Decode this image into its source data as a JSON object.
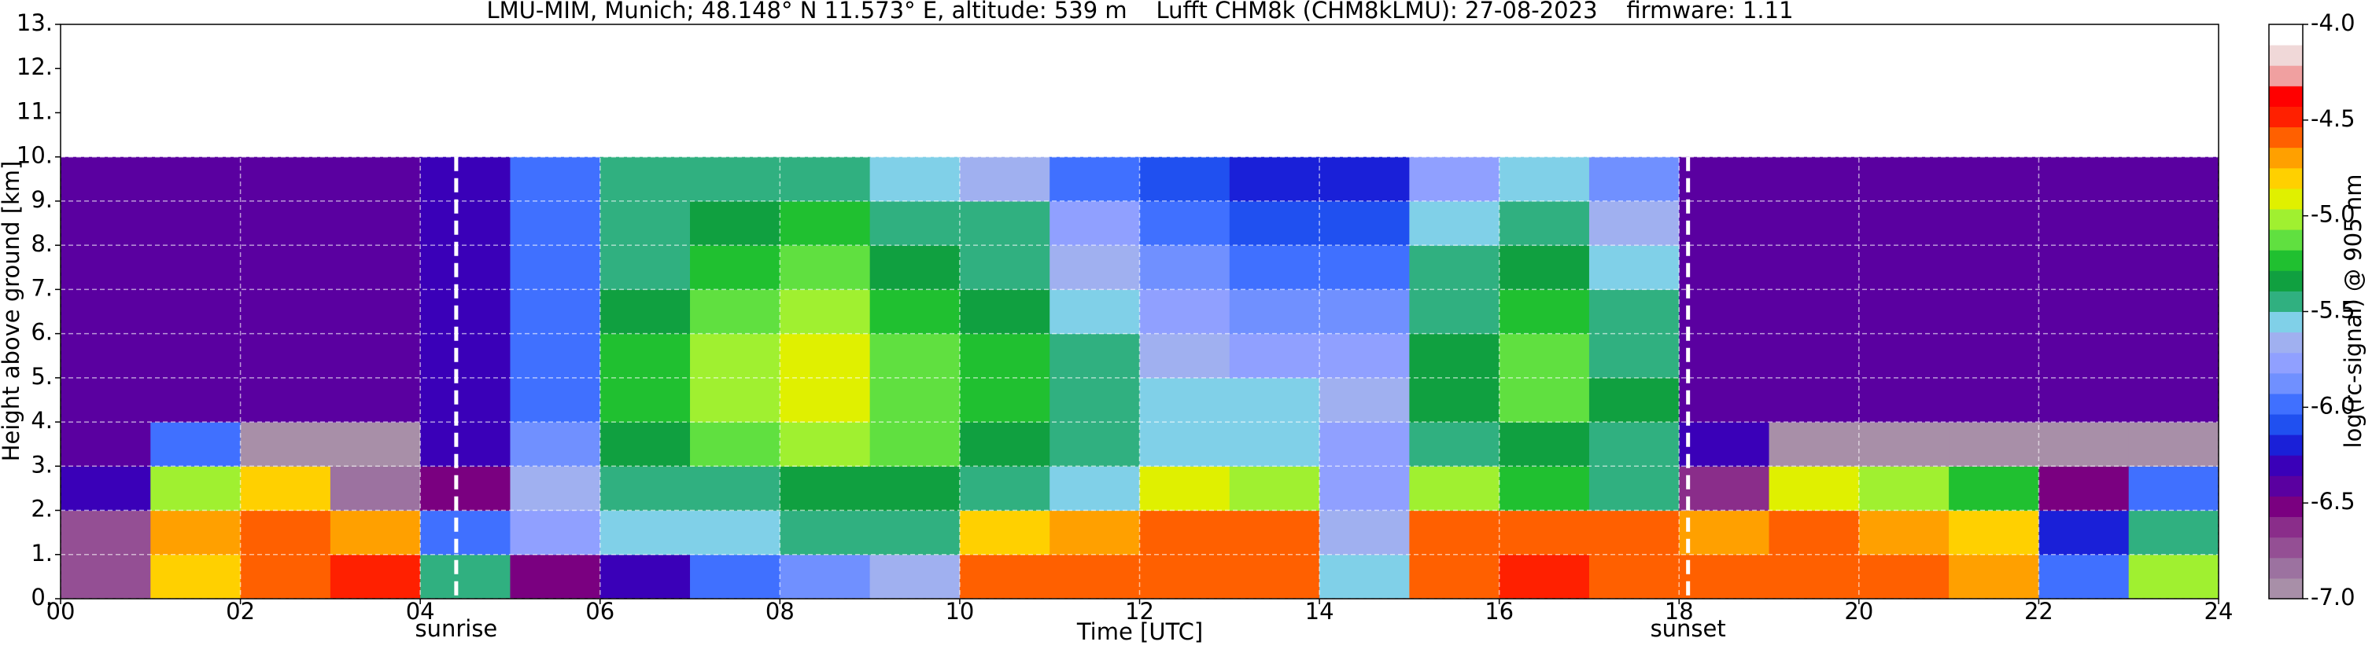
{
  "chart_data": {
    "type": "heatmap",
    "title": "LMU-MIM, Munich; 48.148° N 11.573° E, altitude: 539 m    Lufft CHM8k (CHM8kLMU): 27-08-2023    firmware: 1.11",
    "xlabel": "Time [UTC]",
    "ylabel": "Height above ground [km]",
    "colorbar_label": "log(rc-signal) @ 905 nm",
    "x_edges": [
      0,
      1,
      2,
      3,
      4,
      5,
      6,
      7,
      8,
      9,
      10,
      11,
      12,
      13,
      14,
      15,
      16,
      17,
      18,
      19,
      20,
      21,
      22,
      23,
      24
    ],
    "y_edges": [
      0,
      1,
      2,
      3,
      4,
      5,
      6,
      7,
      8,
      9,
      10
    ],
    "z": [
      [
        -6.7,
        -6.7,
        -6.3,
        -6.4,
        -6.4,
        -6.4,
        -6.4,
        -6.4,
        -6.4,
        -6.4
      ],
      [
        -4.8,
        -4.7,
        -5.0,
        -6.0,
        -6.4,
        -6.4,
        -6.4,
        -6.4,
        -6.4,
        -6.4
      ],
      [
        -4.6,
        -4.6,
        -4.8,
        -6.9,
        -6.4,
        -6.4,
        -6.4,
        -6.4,
        -6.4,
        -6.4
      ],
      [
        -4.5,
        -4.7,
        -6.8,
        -6.9,
        -6.4,
        -6.4,
        -6.4,
        -6.4,
        -6.4,
        -6.4
      ],
      [
        -5.5,
        -6.0,
        -6.5,
        -6.3,
        -6.3,
        -6.3,
        -6.3,
        -6.3,
        -6.3,
        -6.3
      ],
      [
        -6.5,
        -5.8,
        -5.7,
        -5.9,
        -6.0,
        -6.0,
        -6.0,
        -6.0,
        -6.0,
        -6.0
      ],
      [
        -6.3,
        -5.6,
        -5.5,
        -5.3,
        -5.2,
        -5.2,
        -5.3,
        -5.4,
        -5.4,
        -5.4
      ],
      [
        -6.0,
        -5.6,
        -5.4,
        -5.1,
        -5.0,
        -5.0,
        -5.1,
        -5.2,
        -5.3,
        -5.5
      ],
      [
        -5.9,
        -5.5,
        -5.3,
        -5.0,
        -4.9,
        -4.9,
        -5.0,
        -5.1,
        -5.2,
        -5.4
      ],
      [
        -5.7,
        -5.5,
        -5.3,
        -5.1,
        -5.1,
        -5.1,
        -5.2,
        -5.3,
        -5.4,
        -5.6
      ],
      [
        -4.6,
        -4.8,
        -5.4,
        -5.3,
        -5.2,
        -5.2,
        -5.3,
        -5.4,
        -5.5,
        -5.7
      ],
      [
        -4.6,
        -4.7,
        -5.6,
        -5.5,
        -5.4,
        -5.5,
        -5.6,
        -5.7,
        -5.8,
        -6.0
      ],
      [
        -4.6,
        -4.6,
        -4.9,
        -5.6,
        -5.6,
        -5.7,
        -5.8,
        -5.9,
        -6.0,
        -6.1
      ],
      [
        -4.6,
        -4.6,
        -5.0,
        -5.6,
        -5.6,
        -5.8,
        -5.9,
        -6.0,
        -6.1,
        -6.2
      ],
      [
        -5.6,
        -5.7,
        -5.8,
        -5.8,
        -5.7,
        -5.8,
        -5.9,
        -6.0,
        -6.1,
        -6.2
      ],
      [
        -4.6,
        -4.6,
        -5.0,
        -5.5,
        -5.3,
        -5.3,
        -5.4,
        -5.5,
        -5.6,
        -5.8
      ],
      [
        -4.5,
        -4.6,
        -5.2,
        -5.3,
        -5.1,
        -5.1,
        -5.2,
        -5.3,
        -5.4,
        -5.6
      ],
      [
        -4.6,
        -4.6,
        -5.4,
        -5.4,
        -5.3,
        -5.4,
        -5.5,
        -5.6,
        -5.7,
        -5.9
      ],
      [
        -4.6,
        -4.7,
        -6.6,
        -6.3,
        -6.4,
        -6.4,
        -6.4,
        -6.4,
        -6.4,
        -6.4
      ],
      [
        -4.6,
        -4.6,
        -4.9,
        -6.9,
        -6.4,
        -6.4,
        -6.4,
        -6.4,
        -6.4,
        -6.4
      ],
      [
        -4.6,
        -4.7,
        -5.0,
        -6.9,
        -6.4,
        -6.4,
        -6.4,
        -6.4,
        -6.4,
        -6.4
      ],
      [
        -4.7,
        -4.8,
        -5.2,
        -6.9,
        -6.4,
        -6.4,
        -6.4,
        -6.4,
        -6.4,
        -6.4
      ],
      [
        -6.0,
        -6.2,
        -6.5,
        -6.9,
        -6.4,
        -6.4,
        -6.4,
        -6.4,
        -6.4,
        -6.4
      ],
      [
        -5.0,
        -5.4,
        -6.0,
        -6.9,
        -6.4,
        -6.4,
        -6.4,
        -6.4,
        -6.4,
        -6.4
      ]
    ],
    "zlim": [
      -7,
      -4
    ],
    "colorscale": [
      "#a88fa8",
      "#9c72a0",
      "#944f94",
      "#8a2d8a",
      "#7a0080",
      "#5a00a0",
      "#3a00b8",
      "#1a20d8",
      "#2050f0",
      "#4070ff",
      "#7090ff",
      "#90a0ff",
      "#a0b0f0",
      "#80d0e8",
      "#30b080",
      "#10a040",
      "#20c030",
      "#60e040",
      "#a0f030",
      "#e0f000",
      "#ffd000",
      "#ffa000",
      "#ff6000",
      "#ff2000",
      "#ff0000",
      "#f0a0a0",
      "#f0d8d8",
      "#ffffff"
    ],
    "ztick_values": [
      {
        "value": -4,
        "label": "-4.0"
      },
      {
        "value": -4.5,
        "label": "-4.5"
      },
      {
        "value": -5,
        "label": "-5.0"
      },
      {
        "value": -5.5,
        "label": "-5.5"
      },
      {
        "value": -6,
        "label": "-6.0"
      },
      {
        "value": -6.5,
        "label": "-6.5"
      },
      {
        "value": -7,
        "label": "-7.0"
      }
    ],
    "xlim": [
      0,
      24
    ],
    "xticks": [
      {
        "value": 0,
        "label": "00"
      },
      {
        "value": 2,
        "label": "02"
      },
      {
        "value": 4,
        "label": "04"
      },
      {
        "value": 6,
        "label": "06"
      },
      {
        "value": 8,
        "label": "08"
      },
      {
        "value": 10,
        "label": "10"
      },
      {
        "value": 12,
        "label": "12"
      },
      {
        "value": 14,
        "label": "14"
      },
      {
        "value": 16,
        "label": "16"
      },
      {
        "value": 18,
        "label": "18"
      },
      {
        "value": 20,
        "label": "20"
      },
      {
        "value": 22,
        "label": "22"
      },
      {
        "value": 24,
        "label": "24"
      }
    ],
    "ylim": [
      0,
      13
    ],
    "yticks": [
      {
        "value": 0,
        "label": "0."
      },
      {
        "value": 1,
        "label": "1."
      },
      {
        "value": 2,
        "label": "2."
      },
      {
        "value": 3,
        "label": "3."
      },
      {
        "value": 4,
        "label": "4."
      },
      {
        "value": 5,
        "label": "5."
      },
      {
        "value": 6,
        "label": "6."
      },
      {
        "value": 7,
        "label": "7."
      },
      {
        "value": 8,
        "label": "8."
      },
      {
        "value": 9,
        "label": "9."
      },
      {
        "value": 10,
        "label": "10."
      },
      {
        "value": 11,
        "label": "11."
      },
      {
        "value": 12,
        "label": "12."
      },
      {
        "value": 13,
        "label": "13."
      }
    ],
    "grid": true,
    "annotations": [
      {
        "label": "sunrise",
        "x": 4.4
      },
      {
        "label": "sunset",
        "x": 18.1
      }
    ]
  }
}
